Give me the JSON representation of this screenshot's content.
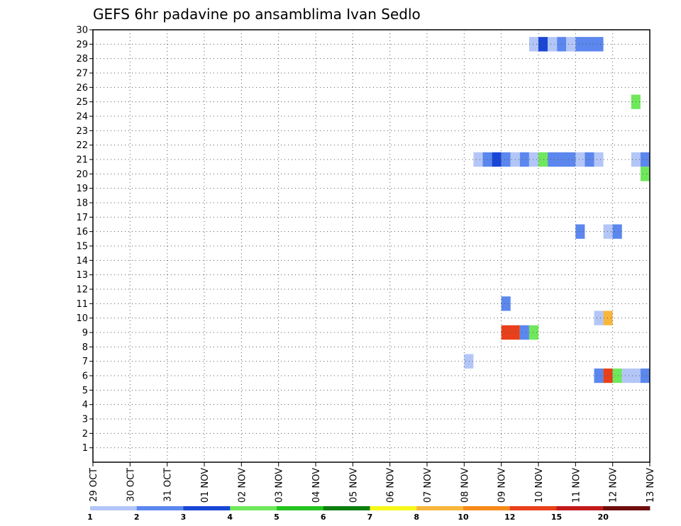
{
  "chart_data": {
    "type": "heatmap",
    "title": "GEFS 6hr padavine po ansamblima Ivan Sedlo",
    "xlabel": "",
    "ylabel": "",
    "x_ticks": [
      "29 OCT",
      "30 OCT",
      "31 OCT",
      "01 NOV",
      "02 NOV",
      "03 NOV",
      "04 NOV",
      "05 NOV",
      "06 NOV",
      "07 NOV",
      "08 NOV",
      "09 NOV",
      "10 NOV",
      "11 NOV",
      "12 NOV",
      "13 NOV"
    ],
    "x_range": [
      "2023-10-29T00",
      "2023-11-13T00"
    ],
    "y_ticks": [
      1,
      2,
      3,
      4,
      5,
      6,
      7,
      8,
      9,
      10,
      11,
      12,
      13,
      14,
      15,
      16,
      17,
      18,
      19,
      20,
      21,
      22,
      23,
      24,
      25,
      26,
      27,
      28,
      29,
      30
    ],
    "ylim": [
      0,
      30
    ],
    "grid": true,
    "legend_position": "bottom",
    "legend": {
      "labels": [
        "1",
        "2",
        "3",
        "4",
        "5",
        "6",
        "7",
        "8",
        "10",
        "12",
        "15",
        "20"
      ],
      "colors": [
        "#b3c6f7",
        "#5b87ee",
        "#1a46d6",
        "#6fe85c",
        "#26c420",
        "#0d7f0d",
        "#f7f719",
        "#f7b63c",
        "#f78a1a",
        "#e8401a",
        "#c21a1a",
        "#6e0d0d"
      ]
    },
    "cells": [
      {
        "member": 29,
        "start": "2023-11-09T18",
        "hours": 6,
        "color": "#b3c6f7"
      },
      {
        "member": 29,
        "start": "2023-11-10T00",
        "hours": 6,
        "color": "#1a46d6"
      },
      {
        "member": 29,
        "start": "2023-11-10T06",
        "hours": 6,
        "color": "#b3c6f7"
      },
      {
        "member": 29,
        "start": "2023-11-10T12",
        "hours": 6,
        "color": "#5b87ee"
      },
      {
        "member": 29,
        "start": "2023-11-10T18",
        "hours": 6,
        "color": "#b3c6f7"
      },
      {
        "member": 29,
        "start": "2023-11-11T00",
        "hours": 18,
        "color": "#5b87ee"
      },
      {
        "member": 25,
        "start": "2023-11-12T12",
        "hours": 6,
        "color": "#6fe85c"
      },
      {
        "member": 21,
        "start": "2023-11-08T06",
        "hours": 6,
        "color": "#b3c6f7"
      },
      {
        "member": 21,
        "start": "2023-11-08T12",
        "hours": 6,
        "color": "#5b87ee"
      },
      {
        "member": 21,
        "start": "2023-11-08T18",
        "hours": 6,
        "color": "#1a46d6"
      },
      {
        "member": 21,
        "start": "2023-11-09T00",
        "hours": 6,
        "color": "#5b87ee"
      },
      {
        "member": 21,
        "start": "2023-11-09T06",
        "hours": 6,
        "color": "#b3c6f7"
      },
      {
        "member": 21,
        "start": "2023-11-09T12",
        "hours": 6,
        "color": "#5b87ee"
      },
      {
        "member": 21,
        "start": "2023-11-09T18",
        "hours": 6,
        "color": "#b3c6f7"
      },
      {
        "member": 21,
        "start": "2023-11-10T00",
        "hours": 6,
        "color": "#6fe85c"
      },
      {
        "member": 21,
        "start": "2023-11-10T06",
        "hours": 18,
        "color": "#5b87ee"
      },
      {
        "member": 21,
        "start": "2023-11-11T00",
        "hours": 6,
        "color": "#b3c6f7"
      },
      {
        "member": 21,
        "start": "2023-11-11T06",
        "hours": 6,
        "color": "#5b87ee"
      },
      {
        "member": 21,
        "start": "2023-11-11T12",
        "hours": 6,
        "color": "#b3c6f7"
      },
      {
        "member": 21,
        "start": "2023-11-12T12",
        "hours": 6,
        "color": "#b3c6f7"
      },
      {
        "member": 21,
        "start": "2023-11-12T18",
        "hours": 6,
        "color": "#5b87ee"
      },
      {
        "member": 20,
        "start": "2023-11-12T18",
        "hours": 6,
        "color": "#6fe85c"
      },
      {
        "member": 16,
        "start": "2023-11-11T00",
        "hours": 6,
        "color": "#5b87ee"
      },
      {
        "member": 16,
        "start": "2023-11-11T18",
        "hours": 6,
        "color": "#b3c6f7"
      },
      {
        "member": 16,
        "start": "2023-11-12T00",
        "hours": 6,
        "color": "#5b87ee"
      },
      {
        "member": 11,
        "start": "2023-11-09T00",
        "hours": 6,
        "color": "#5b87ee"
      },
      {
        "member": 10,
        "start": "2023-11-11T12",
        "hours": 6,
        "color": "#b3c6f7"
      },
      {
        "member": 10,
        "start": "2023-11-11T18",
        "hours": 6,
        "color": "#f7b63c"
      },
      {
        "member": 9,
        "start": "2023-11-09T00",
        "hours": 12,
        "color": "#e8401a"
      },
      {
        "member": 9,
        "start": "2023-11-09T12",
        "hours": 6,
        "color": "#5b87ee"
      },
      {
        "member": 9,
        "start": "2023-11-09T18",
        "hours": 6,
        "color": "#6fe85c"
      },
      {
        "member": 7,
        "start": "2023-11-08T00",
        "hours": 6,
        "color": "#b3c6f7"
      },
      {
        "member": 6,
        "start": "2023-11-11T12",
        "hours": 6,
        "color": "#5b87ee"
      },
      {
        "member": 6,
        "start": "2023-11-11T18",
        "hours": 6,
        "color": "#e8401a"
      },
      {
        "member": 6,
        "start": "2023-11-12T00",
        "hours": 6,
        "color": "#6fe85c"
      },
      {
        "member": 6,
        "start": "2023-11-12T06",
        "hours": 12,
        "color": "#b3c6f7"
      },
      {
        "member": 6,
        "start": "2023-11-12T18",
        "hours": 6,
        "color": "#5b87ee"
      }
    ]
  }
}
